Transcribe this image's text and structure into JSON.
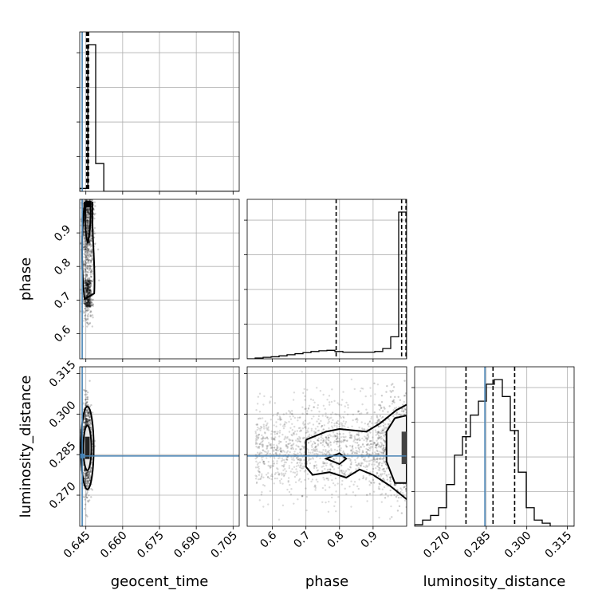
{
  "chart_data": {
    "type": "corner",
    "title": "",
    "parameters": [
      "geocent_time",
      "phase",
      "luminosity_distance"
    ],
    "axis_labels": {
      "geocent_time": "geocent_time",
      "phase": "phase",
      "luminosity_distance": "luminosity_distance"
    },
    "ranges": {
      "geocent_time": [
        0.6425,
        0.7075
      ],
      "phase": [
        0.525,
        1.0
      ],
      "luminosity_distance": [
        0.2585,
        0.3175
      ]
    },
    "ticks": {
      "geocent_time": [
        "0.645",
        "0.660",
        "0.675",
        "0.690",
        "0.705"
      ],
      "phase": [
        "0.6",
        "0.7",
        "0.8",
        "0.9"
      ],
      "luminosity_distance": [
        "0.270",
        "0.285",
        "0.300",
        "0.315"
      ]
    },
    "ticks_y": {
      "phase": [
        "0.6",
        "0.7",
        "0.8",
        "0.9"
      ],
      "luminosity_distance": [
        "0.270",
        "0.285",
        "0.300",
        "0.315"
      ]
    },
    "injection": {
      "geocent_time": 0.6435,
      "luminosity_distance": 0.2845
    },
    "quantiles": {
      "geocent_time": [
        0.6453,
        0.6457,
        0.6461
      ],
      "phase": [
        0.79,
        0.985,
        0.998
      ],
      "luminosity_distance": [
        0.2775,
        0.2875,
        0.2955
      ]
    },
    "histograms": {
      "geocent_time": {
        "edges": [
          0.6425,
          0.6458,
          0.649,
          0.6523,
          0.6555,
          0.6588,
          0.662,
          0.6653,
          0.6685,
          0.6718,
          0.675,
          0.6783,
          0.6815,
          0.6848,
          0.688,
          0.6913,
          0.6945,
          0.6978,
          0.701,
          0.7043,
          0.7075
        ],
        "counts": [
          0.02,
          1.0,
          0.19,
          0.0,
          0.0,
          0.0,
          0.0,
          0.0,
          0.0,
          0.0,
          0.0,
          0.0,
          0.0,
          0.0,
          0.0,
          0.0,
          0.0,
          0.0,
          0.0,
          0.0
        ]
      },
      "phase": {
        "edges": [
          0.525,
          0.54875,
          0.5725,
          0.59625,
          0.62,
          0.64375,
          0.6675,
          0.69125,
          0.715,
          0.73875,
          0.7625,
          0.78625,
          0.81,
          0.83375,
          0.8575,
          0.88125,
          0.905,
          0.92875,
          0.9525,
          0.97625,
          1.0
        ],
        "counts": [
          0.0,
          0.005,
          0.01,
          0.014,
          0.02,
          0.028,
          0.035,
          0.042,
          0.05,
          0.055,
          0.058,
          0.05,
          0.045,
          0.045,
          0.045,
          0.045,
          0.05,
          0.07,
          0.15,
          1.0
        ]
      },
      "luminosity_distance": {
        "edges": [
          0.2585,
          0.26145,
          0.2644,
          0.26735,
          0.2703,
          0.27325,
          0.2762,
          0.27915,
          0.2821,
          0.28505,
          0.288,
          0.29095,
          0.2939,
          0.29685,
          0.2998,
          0.30275,
          0.3057,
          0.30865,
          0.3116,
          0.31455,
          0.3175
        ],
        "counts": [
          0.01,
          0.04,
          0.07,
          0.12,
          0.27,
          0.46,
          0.58,
          0.72,
          0.81,
          0.92,
          0.95,
          0.84,
          0.62,
          0.35,
          0.12,
          0.04,
          0.02,
          0.0,
          0.0,
          0.0
        ]
      }
    },
    "grid": true,
    "line_color": "#000000",
    "injection_color": "#4682b4",
    "scatter_color": "#000000"
  }
}
